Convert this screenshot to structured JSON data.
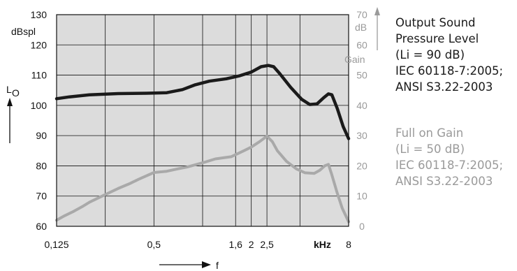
{
  "chart_data": {
    "type": "line",
    "title": "",
    "left_axis": {
      "unit": "dBspl",
      "symbol": "L",
      "symbol_sub": "O",
      "range": [
        60,
        130
      ],
      "ticks": [
        "60",
        "70",
        "80",
        "90",
        "100",
        "110",
        "120",
        "130"
      ]
    },
    "right_axis": {
      "unit": "dB",
      "label": "Gain",
      "range": [
        0,
        70
      ],
      "ticks": [
        "0",
        "10",
        "20",
        "30",
        "40",
        "50",
        "60",
        "70"
      ]
    },
    "x_axis": {
      "label": "f",
      "unit": "kHz",
      "scale": "log",
      "range": [
        0.125,
        8
      ],
      "ticks": [
        "0,125",
        "0,5",
        "1,6",
        "2",
        "2,5",
        "8"
      ],
      "gridlines_khz": [
        0.125,
        0.25,
        0.5,
        1.0,
        1.6,
        2.0,
        2.5,
        4.0,
        8.0
      ]
    },
    "grid": true,
    "series": [
      {
        "name": "Output Sound Pressure Level",
        "color": "#1a1a1a",
        "axis": "left",
        "points": [
          [
            0.125,
            102.2
          ],
          [
            0.15,
            102.8
          ],
          [
            0.2,
            103.5
          ],
          [
            0.3,
            103.9
          ],
          [
            0.45,
            104.0
          ],
          [
            0.6,
            104.2
          ],
          [
            0.75,
            105.2
          ],
          [
            0.9,
            106.8
          ],
          [
            1.1,
            108.0
          ],
          [
            1.4,
            108.8
          ],
          [
            1.7,
            109.8
          ],
          [
            2.0,
            111.0
          ],
          [
            2.3,
            112.8
          ],
          [
            2.55,
            113.2
          ],
          [
            2.75,
            112.8
          ],
          [
            3.0,
            110.5
          ],
          [
            3.5,
            106.0
          ],
          [
            4.1,
            102.0
          ],
          [
            4.6,
            100.3
          ],
          [
            5.1,
            100.5
          ],
          [
            5.6,
            102.5
          ],
          [
            6.0,
            103.8
          ],
          [
            6.3,
            103.5
          ],
          [
            6.8,
            99.0
          ],
          [
            7.4,
            93.0
          ],
          [
            8.0,
            89.0
          ]
        ]
      },
      {
        "name": "Full on Gain",
        "color": "#a9a9a9",
        "axis": "right",
        "points": [
          [
            0.125,
            2.0
          ],
          [
            0.14,
            3.5
          ],
          [
            0.16,
            5.0
          ],
          [
            0.18,
            6.5
          ],
          [
            0.2,
            8.0
          ],
          [
            0.25,
            10.5
          ],
          [
            0.3,
            12.5
          ],
          [
            0.35,
            14.0
          ],
          [
            0.4,
            15.5
          ],
          [
            0.5,
            17.8
          ],
          [
            0.6,
            18.2
          ],
          [
            0.7,
            19.0
          ],
          [
            0.8,
            19.6
          ],
          [
            1.0,
            21.0
          ],
          [
            1.2,
            22.3
          ],
          [
            1.5,
            23.0
          ],
          [
            1.8,
            25.0
          ],
          [
            2.0,
            26.2
          ],
          [
            2.25,
            28.0
          ],
          [
            2.5,
            29.8
          ],
          [
            2.7,
            28.0
          ],
          [
            2.9,
            25.0
          ],
          [
            3.3,
            21.5
          ],
          [
            3.8,
            19.0
          ],
          [
            4.3,
            17.7
          ],
          [
            4.9,
            17.5
          ],
          [
            5.3,
            18.5
          ],
          [
            5.7,
            20.0
          ],
          [
            6.0,
            20.5
          ],
          [
            6.3,
            17.0
          ],
          [
            6.8,
            11.0
          ],
          [
            7.3,
            6.0
          ],
          [
            8.0,
            1.5
          ]
        ]
      }
    ],
    "legend": {
      "placement": "right",
      "output": [
        "Output Sound",
        "Pressure Level",
        "(Li = 90 dB)",
        "IEC 60118-7:2005;",
        "ANSI S3.22-2003"
      ],
      "gain": [
        "Full on Gain",
        "(Li = 50 dB)",
        "IEC 60118-7:2005;",
        "ANSI S3.22-2003"
      ]
    }
  }
}
